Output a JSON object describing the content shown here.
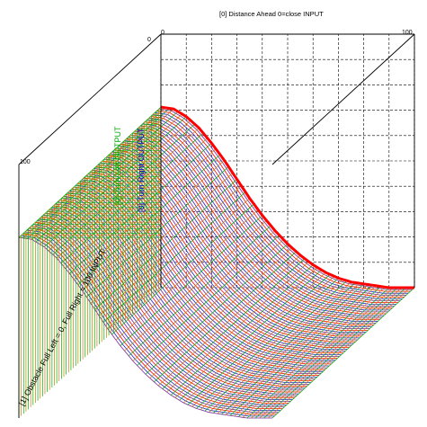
{
  "chart_data": {
    "type": "surface",
    "title": "[0] Distance Ahead 0=close INPUT",
    "axes": {
      "depth": {
        "label": "[1] Obstacle Full Left = 0, Full Right = 100 INPUT",
        "range": [
          0,
          100
        ],
        "ticks": [
          "0",
          "100"
        ]
      },
      "horizontal": {
        "label": "[0] Distance Ahead 0=close INPUT",
        "range": [
          0,
          100
        ],
        "ticks": [
          "0",
          "100"
        ]
      },
      "vertical_outputs": [
        {
          "label": "[0] Turn Left OUTPUT",
          "color": "#00aa00"
        },
        {
          "label": "[0] Turn Right OUTPUT",
          "color": "#0000cc"
        }
      ]
    },
    "surface": {
      "description_of_shape": "Output decreases smoothly from high at distance 0 to a flat floor beyond mid distance; constant across obstacle axis",
      "x": [
        0,
        5,
        10,
        15,
        20,
        25,
        30,
        35,
        40,
        45,
        50,
        55,
        60,
        65,
        70,
        75,
        80,
        85,
        90,
        95,
        100
      ],
      "z": [
        0.95,
        0.94,
        0.9,
        0.84,
        0.76,
        0.67,
        0.57,
        0.47,
        0.38,
        0.3,
        0.23,
        0.17,
        0.12,
        0.08,
        0.05,
        0.03,
        0.02,
        0.01,
        0.0,
        0.0,
        0.0
      ]
    },
    "colors": {
      "surface_top_edge": "#ff0000",
      "curve_blue": "#2222cc",
      "curve_purple": "#7a1fa0",
      "floor_green": "#00b000",
      "floor_orange": "#c08000",
      "grid": "#000000",
      "background": "#ffffff"
    },
    "grid": true
  }
}
